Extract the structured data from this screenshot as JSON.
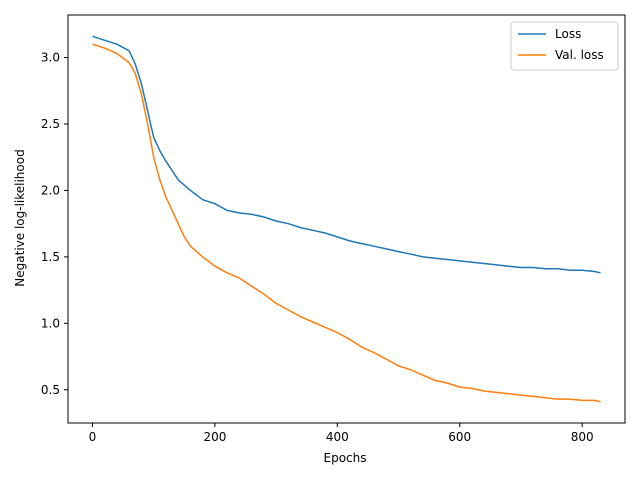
{
  "chart_data": {
    "type": "line",
    "title": "",
    "xlabel": "Epochs",
    "ylabel": "Negative log-likelihood",
    "xlim": [
      -40,
      870
    ],
    "ylim": [
      0.25,
      3.32
    ],
    "xticks": [
      0,
      200,
      400,
      600,
      800
    ],
    "xtick_labels": [
      "0",
      "200",
      "400",
      "600",
      "800"
    ],
    "yticks": [
      0.5,
      1.0,
      1.5,
      2.0,
      2.5,
      3.0
    ],
    "ytick_labels": [
      "0.5",
      "1.0",
      "1.5",
      "2.0",
      "2.5",
      "3.0"
    ],
    "grid": false,
    "legend_position": "top-right",
    "series": [
      {
        "name": "Loss",
        "color": "#1f77b4",
        "x": [
          0,
          20,
          40,
          60,
          70,
          80,
          90,
          95,
          100,
          110,
          120,
          130,
          140,
          160,
          180,
          200,
          220,
          240,
          260,
          280,
          300,
          320,
          340,
          360,
          380,
          400,
          420,
          440,
          460,
          480,
          500,
          520,
          540,
          560,
          580,
          600,
          620,
          640,
          660,
          680,
          700,
          720,
          740,
          760,
          780,
          800,
          820,
          830
        ],
        "y": [
          3.16,
          3.13,
          3.1,
          3.05,
          2.95,
          2.8,
          2.6,
          2.5,
          2.4,
          2.3,
          2.22,
          2.15,
          2.08,
          2.0,
          1.93,
          1.9,
          1.85,
          1.83,
          1.82,
          1.8,
          1.77,
          1.75,
          1.72,
          1.7,
          1.68,
          1.65,
          1.62,
          1.6,
          1.58,
          1.56,
          1.54,
          1.52,
          1.5,
          1.49,
          1.48,
          1.47,
          1.46,
          1.45,
          1.44,
          1.43,
          1.42,
          1.42,
          1.41,
          1.41,
          1.4,
          1.4,
          1.39,
          1.38
        ]
      },
      {
        "name": "Val. loss",
        "color": "#ff7f0e",
        "x": [
          0,
          20,
          40,
          60,
          70,
          80,
          90,
          100,
          110,
          120,
          130,
          140,
          150,
          160,
          180,
          200,
          220,
          240,
          260,
          280,
          300,
          320,
          340,
          360,
          380,
          400,
          420,
          440,
          460,
          480,
          500,
          520,
          540,
          560,
          580,
          600,
          620,
          640,
          660,
          680,
          700,
          720,
          740,
          760,
          780,
          800,
          820,
          830
        ],
        "y": [
          3.1,
          3.07,
          3.03,
          2.96,
          2.88,
          2.72,
          2.5,
          2.25,
          2.08,
          1.95,
          1.85,
          1.75,
          1.65,
          1.58,
          1.5,
          1.43,
          1.38,
          1.34,
          1.28,
          1.22,
          1.15,
          1.1,
          1.05,
          1.01,
          0.97,
          0.93,
          0.88,
          0.82,
          0.78,
          0.73,
          0.68,
          0.65,
          0.61,
          0.57,
          0.55,
          0.52,
          0.51,
          0.49,
          0.48,
          0.47,
          0.46,
          0.45,
          0.44,
          0.43,
          0.43,
          0.42,
          0.42,
          0.41
        ]
      }
    ]
  }
}
